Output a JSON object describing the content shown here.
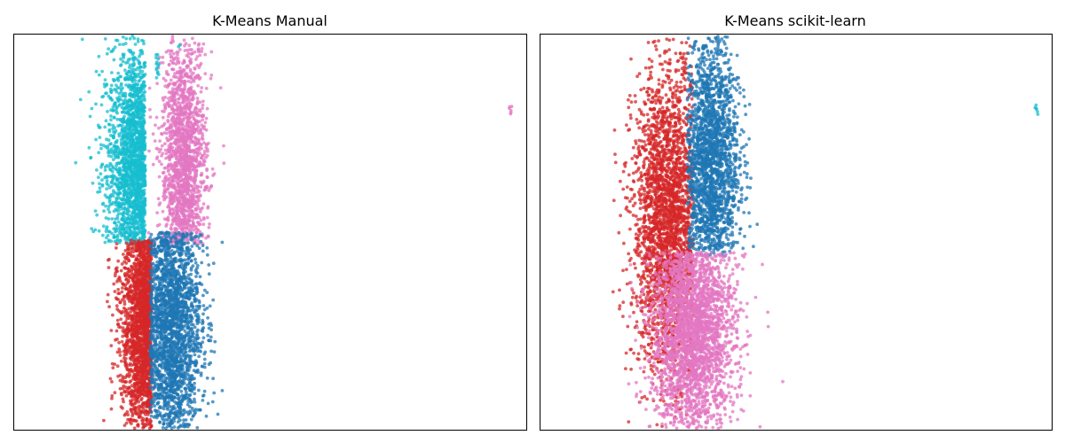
{
  "chart_data": [
    {
      "type": "scatter",
      "title": "K-Means Manual",
      "xlabel": "",
      "ylabel": "",
      "xticks": "hidden",
      "yticks": "hidden",
      "grid": false,
      "xlim": [
        -3,
        13
      ],
      "ylim": [
        -5,
        5
      ],
      "series": [
        {
          "color": "#17becf",
          "count": 1800,
          "region": {
            "cx": 1.0,
            "cy": 1.5,
            "sx": 0.55,
            "sy": 1.6,
            "xmax": 1.1,
            "ymin": -0.3
          }
        },
        {
          "color": "#e377c2",
          "count": 1600,
          "region": {
            "cx": 2.3,
            "cy": 1.6,
            "sx": 0.35,
            "sy": 1.7,
            "xmin": 1.1,
            "ymin": -0.3
          }
        },
        {
          "color": "#d62728",
          "count": 1900,
          "region": {
            "cx": 1.3,
            "cy": -2.2,
            "sx": 0.45,
            "sy": 1.7,
            "xmax": 1.3,
            "ymax": -0.2
          }
        },
        {
          "color": "#1f77b4",
          "count": 2200,
          "region": {
            "cx": 1.85,
            "cy": -2.3,
            "sx": 0.5,
            "sy": 1.7,
            "xmin": 1.25,
            "ymax": 0.0
          }
        }
      ],
      "outliers": [
        {
          "color": "#17becf",
          "x": 1.5,
          "y": 4.5,
          "n": 14
        },
        {
          "color": "#17becf",
          "x": 2.2,
          "y": 4.7,
          "n": 2
        },
        {
          "color": "#e377c2",
          "x": 12.5,
          "y": 3.2,
          "n": 6
        }
      ]
    },
    {
      "type": "scatter",
      "title": "K-Means scikit-learn",
      "xlabel": "",
      "ylabel": "",
      "xticks": "hidden",
      "yticks": "hidden",
      "grid": false,
      "xlim": [
        -3,
        13
      ],
      "ylim": [
        -5,
        5
      ],
      "series": [
        {
          "color": "#d62728",
          "count": 2600,
          "region": {
            "cx": 1.0,
            "cy": 0.3,
            "sx": 0.55,
            "sy": 1.9,
            "xmax": 1.8
          }
        },
        {
          "color": "#1f77b4",
          "count": 2000,
          "region": {
            "cx": 2.3,
            "cy": 1.8,
            "sx": 0.45,
            "sy": 1.6,
            "xmin": 1.6,
            "ymin": -0.6
          }
        },
        {
          "color": "#e377c2",
          "count": 2600,
          "region": {
            "cx": 1.8,
            "cy": -2.5,
            "sx": 0.65,
            "sy": 1.4,
            "ymax": -0.5
          }
        }
      ],
      "outliers": [
        {
          "color": "#d62728",
          "x": 1.5,
          "y": 4.5,
          "n": 14
        },
        {
          "color": "#1f77b4",
          "x": 2.2,
          "y": 4.7,
          "n": 2
        },
        {
          "color": "#17becf",
          "x": 12.5,
          "y": 3.2,
          "n": 6
        }
      ]
    }
  ]
}
